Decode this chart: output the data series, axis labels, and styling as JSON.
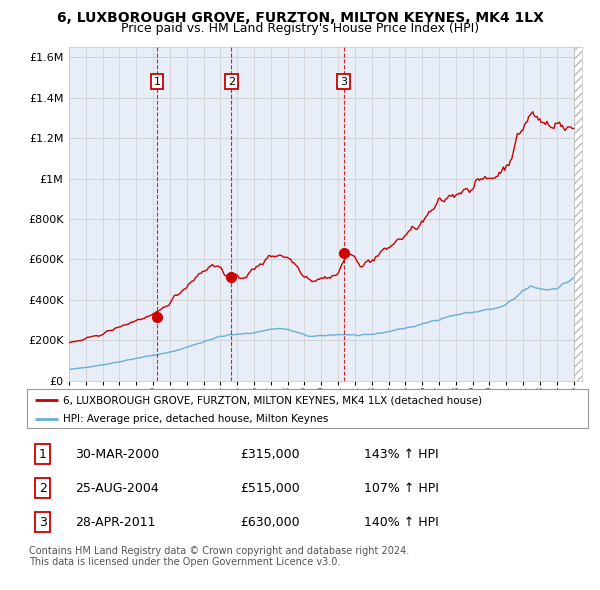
{
  "title": "6, LUXBOROUGH GROVE, FURZTON, MILTON KEYNES, MK4 1LX",
  "subtitle": "Price paid vs. HM Land Registry's House Price Index (HPI)",
  "ylim": [
    0,
    1650000
  ],
  "yticks": [
    0,
    200000,
    400000,
    600000,
    800000,
    1000000,
    1200000,
    1400000,
    1600000
  ],
  "ytick_labels": [
    "£0",
    "£200K",
    "£400K",
    "£600K",
    "£800K",
    "£1M",
    "£1.2M",
    "£1.4M",
    "£1.6M"
  ],
  "hpi_color": "#6BAED6",
  "price_color": "#CC0000",
  "chart_bg": "#E8EEF8",
  "sale_marker_color": "#CC0000",
  "dashed_color": "#CC0000",
  "sales": [
    {
      "year": 2000.23,
      "price": 315000,
      "label": "1"
    },
    {
      "year": 2004.65,
      "price": 515000,
      "label": "2"
    },
    {
      "year": 2011.33,
      "price": 630000,
      "label": "3"
    }
  ],
  "hpi_knots": [
    1995.0,
    1995.5,
    1996.0,
    1996.5,
    1997.0,
    1997.5,
    1998.0,
    1998.5,
    1999.0,
    1999.5,
    2000.0,
    2000.5,
    2001.0,
    2001.5,
    2002.0,
    2002.5,
    2003.0,
    2003.5,
    2004.0,
    2004.5,
    2005.0,
    2005.5,
    2006.0,
    2006.5,
    2007.0,
    2007.5,
    2008.0,
    2008.5,
    2009.0,
    2009.5,
    2010.0,
    2010.5,
    2011.0,
    2011.5,
    2012.0,
    2012.5,
    2013.0,
    2013.5,
    2014.0,
    2014.5,
    2015.0,
    2015.5,
    2016.0,
    2016.5,
    2017.0,
    2017.5,
    2018.0,
    2018.5,
    2019.0,
    2019.5,
    2020.0,
    2020.5,
    2021.0,
    2021.5,
    2022.0,
    2022.5,
    2023.0,
    2023.5,
    2024.0,
    2024.5,
    2025.0
  ],
  "hpi_vals": [
    55000,
    60000,
    65000,
    72000,
    78000,
    85000,
    93000,
    102000,
    110000,
    118000,
    125000,
    132000,
    140000,
    152000,
    165000,
    178000,
    192000,
    207000,
    218000,
    225000,
    228000,
    232000,
    238000,
    245000,
    255000,
    258000,
    252000,
    240000,
    225000,
    218000,
    220000,
    225000,
    228000,
    228000,
    224000,
    222000,
    228000,
    235000,
    243000,
    252000,
    260000,
    268000,
    278000,
    292000,
    305000,
    315000,
    325000,
    332000,
    338000,
    345000,
    352000,
    358000,
    375000,
    405000,
    445000,
    465000,
    455000,
    450000,
    460000,
    480000,
    510000
  ],
  "price_knots": [
    1995.0,
    1995.5,
    1996.0,
    1996.5,
    1997.0,
    1997.5,
    1998.0,
    1998.5,
    1999.0,
    1999.5,
    2000.0,
    2000.5,
    2001.0,
    2001.5,
    2002.0,
    2002.5,
    2003.0,
    2003.5,
    2004.0,
    2004.5,
    2005.0,
    2005.5,
    2006.0,
    2006.5,
    2007.0,
    2007.5,
    2008.0,
    2008.5,
    2009.0,
    2009.5,
    2010.0,
    2010.5,
    2011.0,
    2011.5,
    2012.0,
    2012.5,
    2013.0,
    2013.5,
    2014.0,
    2014.5,
    2015.0,
    2015.5,
    2016.0,
    2016.5,
    2017.0,
    2017.5,
    2018.0,
    2018.5,
    2019.0,
    2019.5,
    2020.0,
    2020.5,
    2021.0,
    2021.5,
    2022.0,
    2022.5,
    2023.0,
    2023.5,
    2024.0,
    2024.5,
    2025.0
  ],
  "price_vals": [
    185000,
    195000,
    205000,
    218000,
    232000,
    248000,
    265000,
    282000,
    298000,
    310000,
    320000,
    350000,
    390000,
    430000,
    470000,
    510000,
    548000,
    570000,
    560000,
    515000,
    510000,
    520000,
    545000,
    585000,
    620000,
    625000,
    610000,
    575000,
    520000,
    498000,
    505000,
    515000,
    525000,
    628000,
    600000,
    575000,
    595000,
    625000,
    660000,
    690000,
    720000,
    748000,
    780000,
    830000,
    875000,
    905000,
    930000,
    948000,
    965000,
    985000,
    1005000,
    1020000,
    1065000,
    1155000,
    1260000,
    1320000,
    1285000,
    1270000,
    1280000,
    1240000,
    1250000
  ],
  "table_data": [
    [
      "1",
      "30-MAR-2000",
      "£315,000",
      "143% ↑ HPI"
    ],
    [
      "2",
      "25-AUG-2004",
      "£515,000",
      "107% ↑ HPI"
    ],
    [
      "3",
      "28-APR-2011",
      "£630,000",
      "140% ↑ HPI"
    ]
  ],
  "legend_line1": "6, LUXBOROUGH GROVE, FURZTON, MILTON KEYNES, MK4 1LX (detached house)",
  "legend_line2": "HPI: Average price, detached house, Milton Keynes",
  "footnote": "Contains HM Land Registry data © Crown copyright and database right 2024.\nThis data is licensed under the Open Government Licence v3.0.",
  "background_color": "#FFFFFF"
}
